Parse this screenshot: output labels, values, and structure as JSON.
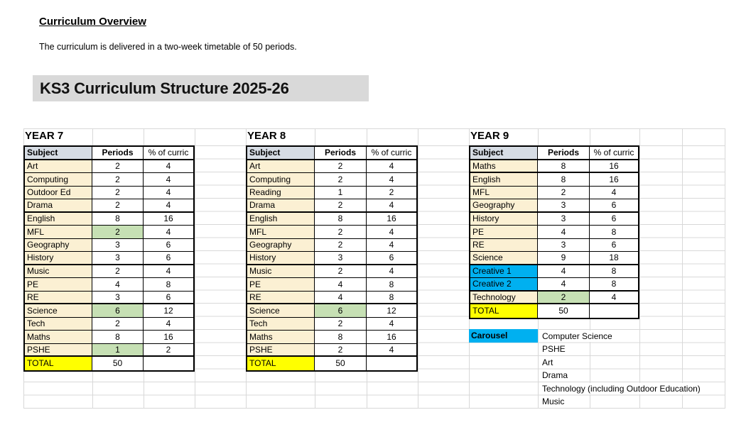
{
  "header": {
    "title": "Curriculum Overview",
    "intro": "The curriculum is delivered in a two-week timetable of 50 periods.",
    "banner": "KS3 Curriculum Structure 2025-26"
  },
  "column_headers": {
    "subject": "Subject",
    "periods": "Periods",
    "percent": "% of curric"
  },
  "tables": [
    {
      "year": "YEAR 7",
      "rows": [
        {
          "subject": "Art",
          "periods": "2",
          "percent": "4"
        },
        {
          "subject": "Computing",
          "periods": "2",
          "percent": "4"
        },
        {
          "subject": "Outdoor Ed",
          "periods": "2",
          "percent": "4"
        },
        {
          "subject": "Drama",
          "periods": "2",
          "percent": "4",
          "group_end": true
        },
        {
          "subject": "English",
          "periods": "8",
          "percent": "16"
        },
        {
          "subject": "MFL",
          "periods": "2",
          "percent": "4",
          "periods_fill": "green"
        },
        {
          "subject": "Geography",
          "periods": "3",
          "percent": "6"
        },
        {
          "subject": "History",
          "periods": "3",
          "percent": "6",
          "group_end": true
        },
        {
          "subject": "Music",
          "periods": "2",
          "percent": "4"
        },
        {
          "subject": "PE",
          "periods": "4",
          "percent": "8"
        },
        {
          "subject": "RE",
          "periods": "3",
          "percent": "6",
          "group_end": true
        },
        {
          "subject": "Science",
          "periods": "6",
          "percent": "12",
          "periods_fill": "green"
        },
        {
          "subject": "Tech",
          "periods": "2",
          "percent": "4"
        },
        {
          "subject": "Maths",
          "periods": "8",
          "percent": "16"
        },
        {
          "subject": "PSHE",
          "periods": "1",
          "percent": "2",
          "periods_fill": "green",
          "group_end": true
        }
      ],
      "total": {
        "label": "TOTAL",
        "periods": "50",
        "percent": ""
      }
    },
    {
      "year": "YEAR 8",
      "rows": [
        {
          "subject": "Art",
          "periods": "2",
          "percent": "4"
        },
        {
          "subject": "Computing",
          "periods": "2",
          "percent": "4"
        },
        {
          "subject": "Reading",
          "periods": "1",
          "percent": "2"
        },
        {
          "subject": "Drama",
          "periods": "2",
          "percent": "4",
          "group_end": true
        },
        {
          "subject": "English",
          "periods": "8",
          "percent": "16"
        },
        {
          "subject": "MFL",
          "periods": "2",
          "percent": "4"
        },
        {
          "subject": "Geography",
          "periods": "2",
          "percent": "4"
        },
        {
          "subject": "History",
          "periods": "3",
          "percent": "6",
          "group_end": true
        },
        {
          "subject": "Music",
          "periods": "2",
          "percent": "4"
        },
        {
          "subject": "PE",
          "periods": "4",
          "percent": "8"
        },
        {
          "subject": "RE",
          "periods": "4",
          "percent": "8",
          "group_end": true
        },
        {
          "subject": "Science",
          "periods": "6",
          "percent": "12",
          "periods_fill": "green"
        },
        {
          "subject": "Tech",
          "periods": "2",
          "percent": "4"
        },
        {
          "subject": "Maths",
          "periods": "8",
          "percent": "16"
        },
        {
          "subject": "PSHE",
          "periods": "2",
          "percent": "4",
          "group_end": true
        }
      ],
      "total": {
        "label": "TOTAL",
        "periods": "50",
        "percent": ""
      }
    },
    {
      "year": "YEAR 9",
      "rows": [
        {
          "subject": "Maths",
          "periods": "8",
          "percent": "16",
          "group_end": true
        },
        {
          "subject": "English",
          "periods": "8",
          "percent": "16"
        },
        {
          "subject": "MFL",
          "periods": "2",
          "percent": "4"
        },
        {
          "subject": "Geography",
          "periods": "3",
          "percent": "6",
          "group_end": true
        },
        {
          "subject": "History",
          "periods": "3",
          "percent": "6"
        },
        {
          "subject": "PE",
          "periods": "4",
          "percent": "8"
        },
        {
          "subject": "RE",
          "periods": "3",
          "percent": "6"
        },
        {
          "subject": "Science",
          "periods": "9",
          "percent": "18",
          "group_end": true
        },
        {
          "subject": "Creative 1",
          "periods": "4",
          "percent": "8",
          "subject_fill": "blue"
        },
        {
          "subject": "Creative 2",
          "periods": "4",
          "percent": "8",
          "subject_fill": "blue",
          "group_end": true
        },
        {
          "subject": "Technology",
          "periods": "2",
          "percent": "4",
          "periods_fill": "green",
          "group_end": true
        }
      ],
      "total": {
        "label": "TOTAL",
        "periods": "50",
        "percent": ""
      }
    }
  ],
  "carousel": {
    "label": "Carousel",
    "items": [
      "Computer Science",
      "PSHE",
      "Art",
      "Drama",
      "Technology (including Outdoor Education)",
      "Music"
    ]
  },
  "colors": {
    "cream": "#FBF0D3",
    "green": "#C6E0B4",
    "yellow": "#FFFF00",
    "blue": "#00B0F0",
    "headerfill": "#D6DCE4",
    "banner": "#D9D9D9",
    "grid": "#D8D8D8"
  }
}
